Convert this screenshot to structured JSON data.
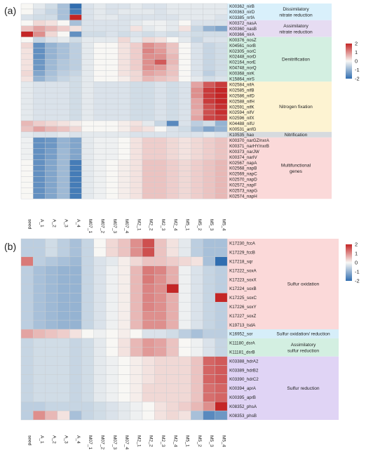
{
  "chart_data": [
    {
      "type": "heatmap",
      "panel_label": "(a)",
      "columns": [
        "seed",
        "A_1",
        "A_2",
        "A_3",
        "A_4",
        "M07_1",
        "M07_2",
        "M07_3",
        "M07_4",
        "M2_1",
        "M2_2",
        "M2_3",
        "M2_4",
        "M5_1",
        "M5_2",
        "M5_3",
        "M5_4"
      ],
      "rows": [
        "K00362_nirB",
        "K00363_nirD",
        "K03385_nrfA",
        "K00372_nasA",
        "K00360_nasB",
        "K00366_nirA",
        "K00376_nosZ",
        "K04561_norB",
        "K02305_norC",
        "K02448_norD",
        "K02164_norE",
        "K04748_norQ",
        "K00368_nirK",
        "K15864_nirS",
        "K02584_nifA",
        "K02585_nifB",
        "K02586_nifD",
        "K02588_nifH",
        "K02591_nifK",
        "K02594_nifV",
        "K02596_nifX",
        "K04488_nifU",
        "K00531_anfG",
        "K10535_hao",
        "K00370_narGZ/nxrA",
        "K00371_narHY/nxrB",
        "K00373_narJW",
        "K00374_narIV",
        "K02567_napA",
        "K02568_napB",
        "K02569_napC",
        "K02570_napD",
        "K02572_napF",
        "K02573_napG",
        "K02574_napH"
      ],
      "values": [
        [
          0.0,
          -0.2,
          -0.4,
          -0.8,
          -2.0,
          -0.3,
          -0.2,
          -0.3,
          -0.3,
          -0.2,
          -0.3,
          -0.3,
          -0.2,
          -0.2,
          -0.2,
          -0.2,
          -0.2
        ],
        [
          0.0,
          -0.3,
          -0.5,
          -0.8,
          -1.8,
          -0.3,
          -0.2,
          -0.3,
          -0.2,
          -0.2,
          -0.2,
          -0.3,
          -0.2,
          -0.2,
          -0.2,
          -0.2,
          -0.2
        ],
        [
          -0.3,
          -0.4,
          -0.4,
          -0.8,
          2.5,
          -0.3,
          -0.2,
          -0.2,
          -0.3,
          -0.3,
          -0.3,
          -0.3,
          -0.3,
          -0.2,
          -0.2,
          -0.2,
          -0.3
        ],
        [
          0.0,
          0.3,
          0.2,
          0.0,
          -0.8,
          -0.3,
          -0.3,
          -0.3,
          -0.3,
          -0.2,
          -0.1,
          -0.1,
          -0.2,
          0.0,
          -0.3,
          -0.3,
          -0.3
        ],
        [
          0.5,
          0.8,
          0.6,
          0.4,
          0.2,
          -0.3,
          -0.3,
          -0.3,
          -0.3,
          0.2,
          -0.2,
          -0.1,
          -0.2,
          0.2,
          -0.5,
          -1.0,
          -1.2
        ],
        [
          2.0,
          1.0,
          0.3,
          0.0,
          -1.5,
          -0.4,
          -0.4,
          -0.3,
          -0.4,
          -0.3,
          -0.4,
          -0.3,
          -0.4,
          -0.3,
          -0.4,
          -0.4,
          -0.4
        ],
        [
          0.0,
          -0.5,
          -0.3,
          -0.2,
          -0.4,
          -0.2,
          -0.2,
          -0.2,
          0.3,
          -0.2,
          0.3,
          0.2,
          0.0,
          -0.2,
          -0.5,
          -0.3,
          -0.3
        ],
        [
          0.3,
          -1.5,
          -1.0,
          -0.8,
          -0.6,
          -0.2,
          0.0,
          0.0,
          0.2,
          0.4,
          1.0,
          0.8,
          0.5,
          0.0,
          -0.3,
          -0.5,
          -0.4
        ],
        [
          0.2,
          -1.5,
          -1.0,
          -0.8,
          -0.6,
          -0.2,
          0.0,
          0.0,
          0.2,
          0.4,
          1.1,
          0.9,
          0.5,
          0.0,
          -0.3,
          -0.5,
          -0.4
        ],
        [
          0.2,
          -1.5,
          -1.0,
          -0.8,
          -0.6,
          -0.2,
          0.0,
          0.0,
          0.2,
          0.4,
          1.0,
          1.0,
          0.6,
          0.0,
          -0.3,
          -0.5,
          -0.4
        ],
        [
          0.2,
          -1.4,
          -0.9,
          -0.7,
          -0.6,
          -0.2,
          0.0,
          0.0,
          0.2,
          0.4,
          1.0,
          1.5,
          0.6,
          0.0,
          -0.3,
          -0.5,
          -0.4
        ],
        [
          0.2,
          -1.4,
          -0.9,
          -0.7,
          -0.6,
          -0.2,
          0.0,
          0.0,
          0.2,
          0.4,
          1.0,
          0.9,
          0.5,
          0.0,
          -0.3,
          -0.5,
          -0.4
        ],
        [
          0.3,
          -1.2,
          -0.8,
          -0.6,
          -0.5,
          -0.2,
          0.0,
          0.0,
          0.2,
          0.3,
          0.8,
          0.7,
          0.5,
          0.0,
          -0.3,
          -0.6,
          -0.4
        ],
        [
          0.2,
          -1.0,
          -0.7,
          -0.5,
          -0.4,
          -0.2,
          0.0,
          0.0,
          0.1,
          0.3,
          0.6,
          0.5,
          0.4,
          0.0,
          -0.2,
          -0.4,
          -0.3
        ],
        [
          -0.2,
          -0.3,
          -0.3,
          -0.3,
          -0.4,
          -0.2,
          -0.3,
          -0.3,
          -0.3,
          -0.4,
          -0.4,
          -0.3,
          -0.4,
          -0.3,
          0.8,
          1.5,
          1.8
        ],
        [
          -0.2,
          -0.3,
          -0.3,
          -0.3,
          -0.4,
          -0.2,
          -0.3,
          -0.3,
          -0.3,
          -0.4,
          -0.4,
          -0.3,
          -0.4,
          -0.3,
          1.0,
          1.8,
          2.0
        ],
        [
          -0.2,
          -0.3,
          -0.3,
          -0.3,
          -0.4,
          -0.2,
          -0.3,
          -0.3,
          -0.3,
          -0.4,
          -0.4,
          -0.3,
          -0.4,
          -0.3,
          1.0,
          1.8,
          2.0
        ],
        [
          -0.2,
          -0.3,
          -0.3,
          -0.3,
          -0.4,
          -0.2,
          -0.3,
          -0.3,
          -0.3,
          -0.4,
          -0.4,
          -0.3,
          -0.4,
          -0.3,
          0.8,
          1.8,
          2.0
        ],
        [
          -0.2,
          -0.3,
          -0.3,
          -0.3,
          -0.4,
          -0.2,
          -0.3,
          -0.3,
          -0.3,
          -0.4,
          -0.4,
          -0.3,
          -0.4,
          -0.3,
          0.8,
          1.6,
          1.9
        ],
        [
          -0.2,
          -0.3,
          -0.3,
          -0.3,
          -0.4,
          -0.2,
          -0.3,
          -0.3,
          -0.3,
          -0.4,
          -0.4,
          -0.3,
          -0.4,
          -0.3,
          0.7,
          1.6,
          1.9
        ],
        [
          -0.2,
          -0.3,
          -0.3,
          -0.3,
          -0.4,
          -0.2,
          -0.3,
          -0.3,
          -0.3,
          -0.4,
          -0.4,
          -0.3,
          -0.4,
          -0.3,
          0.8,
          1.7,
          1.8
        ],
        [
          0.6,
          0.4,
          0.3,
          0.2,
          0.1,
          0.0,
          0.0,
          0.0,
          0.1,
          0.2,
          -0.2,
          -0.5,
          -1.6,
          -0.3,
          -0.6,
          -0.4,
          -1.0
        ],
        [
          0.5,
          0.8,
          0.6,
          0.5,
          0.3,
          0.0,
          0.0,
          0.0,
          0.1,
          0.3,
          0.2,
          0.0,
          -0.3,
          -0.4,
          -0.8,
          -1.2,
          -1.0
        ],
        [
          -0.2,
          -0.3,
          -0.3,
          -0.2,
          -0.3,
          -0.2,
          -0.2,
          -0.2,
          -0.2,
          -0.3,
          -0.3,
          -0.3,
          -0.3,
          -0.3,
          -0.3,
          -0.2,
          -0.3
        ],
        [
          -0.1,
          -1.5,
          -1.4,
          -1.0,
          -1.2,
          -0.2,
          -0.1,
          -0.1,
          0.0,
          0.2,
          0.4,
          0.4,
          0.3,
          0.2,
          0.3,
          0.4,
          0.5
        ],
        [
          -0.1,
          -1.5,
          -1.4,
          -1.0,
          -1.2,
          -0.2,
          -0.1,
          -0.1,
          0.0,
          0.2,
          0.4,
          0.4,
          0.3,
          0.2,
          0.3,
          0.4,
          0.5
        ],
        [
          -0.1,
          -1.5,
          -1.3,
          -0.9,
          -1.2,
          -0.2,
          -0.1,
          -0.1,
          0.0,
          0.2,
          0.4,
          0.4,
          0.3,
          0.2,
          0.3,
          0.4,
          0.5
        ],
        [
          -0.1,
          -1.5,
          -1.3,
          -0.9,
          -1.2,
          -0.2,
          -0.1,
          -0.1,
          0.0,
          0.2,
          0.4,
          0.4,
          0.3,
          0.2,
          0.3,
          0.4,
          0.5
        ],
        [
          0.0,
          -1.5,
          -1.2,
          -0.9,
          -1.8,
          -0.2,
          -0.1,
          0.0,
          0.1,
          0.2,
          0.5,
          0.5,
          0.4,
          0.3,
          0.4,
          0.5,
          0.6
        ],
        [
          0.0,
          -1.5,
          -1.2,
          -0.9,
          -1.8,
          -0.2,
          -0.1,
          0.0,
          0.1,
          0.2,
          0.5,
          0.5,
          0.4,
          0.3,
          0.4,
          0.5,
          0.6
        ],
        [
          0.0,
          -1.5,
          -1.2,
          -0.9,
          -1.8,
          -0.2,
          -0.1,
          0.0,
          0.1,
          0.2,
          0.5,
          0.5,
          0.4,
          0.3,
          0.4,
          0.5,
          0.6
        ],
        [
          0.0,
          -1.5,
          -1.2,
          -0.9,
          -1.8,
          -0.2,
          -0.1,
          0.0,
          0.1,
          0.2,
          0.5,
          0.5,
          0.4,
          0.3,
          0.4,
          0.5,
          0.6
        ],
        [
          0.0,
          -1.5,
          -1.2,
          -0.9,
          -1.8,
          -0.2,
          -0.1,
          0.0,
          0.1,
          0.2,
          0.5,
          0.5,
          0.4,
          0.3,
          0.4,
          0.5,
          0.6
        ],
        [
          0.0,
          -1.5,
          -1.2,
          -0.9,
          -1.8,
          -0.2,
          -0.1,
          0.0,
          0.1,
          0.2,
          0.5,
          0.5,
          0.4,
          0.3,
          0.4,
          0.5,
          0.6
        ],
        [
          0.0,
          -1.5,
          -1.2,
          -0.9,
          -1.8,
          -0.2,
          -0.1,
          0.0,
          0.1,
          0.2,
          0.5,
          0.5,
          0.4,
          0.3,
          0.4,
          0.5,
          0.6
        ]
      ],
      "categories": [
        {
          "label": "Dissimilatory\nnitrate reduction",
          "row_start": 0,
          "row_end": 2,
          "color": "#d9f0fb"
        },
        {
          "label": "Assimilatory\nnitrate reduction",
          "row_start": 3,
          "row_end": 5,
          "color": "#e6dcf2"
        },
        {
          "label": "Denitrification",
          "row_start": 6,
          "row_end": 13,
          "color": "#d3efe1"
        },
        {
          "label": "Nitrogen fixation",
          "row_start": 14,
          "row_end": 22,
          "color": "#fdf3d2"
        },
        {
          "label": "Nitrification",
          "row_start": 23,
          "row_end": 23,
          "color": "#d6dade"
        },
        {
          "label": "Multifunctional\ngenes",
          "row_start": 24,
          "row_end": 34,
          "color": "#fbd9d9"
        }
      ],
      "scale": {
        "min": -2,
        "max": 2,
        "ticks": [
          "2",
          "1",
          "0",
          "-1",
          "-2"
        ]
      }
    },
    {
      "type": "heatmap",
      "panel_label": "(b)",
      "columns": [
        "seed",
        "A_1",
        "A_2",
        "A_3",
        "A_4",
        "M07_1",
        "M07_2",
        "M07_3",
        "M07_4",
        "M2_1",
        "M2_2",
        "M2_3",
        "M2_4",
        "M5_1",
        "M5_2",
        "M5_3",
        "M5_4"
      ],
      "rows": [
        "K17230_fccA",
        "K17229_fccB",
        "K17218_sqr",
        "K17222_soxA",
        "K17223_soxX",
        "K17224_soxB",
        "K17225_soxC",
        "K17226_soxY",
        "K17227_soxZ",
        "K19713_tsdA",
        "K16952_sor",
        "K11180_dsrA",
        "K11181_dsrB",
        "K03388_hdrA2",
        "K03389_hdrB2",
        "K03390_hdrC2",
        "K00394_aprA",
        "K00395_aprB",
        "K08352_phsA",
        "K08353_phsB"
      ],
      "values": [
        [
          -0.6,
          -0.6,
          -0.4,
          -0.6,
          -0.8,
          -0.5,
          0.0,
          0.3,
          0.5,
          1.0,
          1.6,
          0.5,
          0.2,
          -0.2,
          -0.6,
          -0.8,
          -0.8
        ],
        [
          -0.6,
          -0.6,
          -0.4,
          -0.6,
          -0.8,
          -0.5,
          0.0,
          0.3,
          0.5,
          1.0,
          1.6,
          0.5,
          0.2,
          -0.2,
          -0.6,
          -0.8,
          -0.8
        ],
        [
          1.2,
          -0.6,
          -0.7,
          -0.8,
          -0.9,
          -0.5,
          -0.3,
          -0.2,
          0.1,
          0.3,
          0.5,
          0.5,
          0.4,
          0.3,
          0.2,
          -0.8,
          -2.0
        ],
        [
          -0.6,
          -0.8,
          -0.9,
          -1.0,
          -1.0,
          -0.5,
          -0.3,
          -0.1,
          0.1,
          0.6,
          1.2,
          1.1,
          0.7,
          -0.1,
          -0.3,
          -0.5,
          -0.6
        ],
        [
          -0.6,
          -0.8,
          -0.9,
          -1.0,
          -1.0,
          -0.5,
          -0.3,
          -0.1,
          0.1,
          0.6,
          1.2,
          1.0,
          0.7,
          -0.1,
          -0.3,
          -0.5,
          -0.6
        ],
        [
          -0.6,
          -0.8,
          -0.9,
          -1.0,
          -1.0,
          -0.5,
          -0.3,
          -0.1,
          0.1,
          0.6,
          1.1,
          1.0,
          2.2,
          -0.1,
          -0.3,
          -0.5,
          -0.6
        ],
        [
          -0.6,
          -0.8,
          -0.9,
          -1.0,
          -1.0,
          -0.5,
          -0.3,
          -0.1,
          0.1,
          0.6,
          1.1,
          1.0,
          0.7,
          -0.1,
          -0.3,
          -0.5,
          2.2
        ],
        [
          -0.6,
          -0.8,
          -0.9,
          -1.0,
          -1.0,
          -0.5,
          -0.3,
          -0.1,
          0.1,
          0.6,
          1.1,
          1.0,
          0.7,
          -0.1,
          -0.3,
          -0.5,
          -0.6
        ],
        [
          -0.6,
          -0.8,
          -0.9,
          -1.0,
          -1.0,
          -0.5,
          -0.3,
          -0.1,
          0.1,
          0.6,
          1.0,
          1.0,
          0.7,
          -0.1,
          -0.3,
          -0.5,
          -0.6
        ],
        [
          -0.6,
          -0.8,
          -0.9,
          -1.0,
          -1.0,
          -0.5,
          -0.3,
          -0.1,
          0.1,
          0.6,
          1.0,
          1.0,
          0.7,
          -0.1,
          -0.3,
          -0.5,
          -0.6
        ],
        [
          0.8,
          0.6,
          0.5,
          0.4,
          0.2,
          0.0,
          -0.1,
          0.0,
          0.1,
          0.0,
          -0.3,
          -0.3,
          -0.4,
          -0.6,
          -0.8,
          -0.6,
          -0.6
        ],
        [
          -0.5,
          -0.4,
          -0.4,
          -0.4,
          -0.5,
          -0.4,
          -0.2,
          0.0,
          0.2,
          0.6,
          0.9,
          0.8,
          0.5,
          0.0,
          -0.1,
          -0.3,
          -0.5
        ],
        [
          -0.5,
          -0.4,
          -0.4,
          -0.4,
          -0.5,
          -0.4,
          -0.2,
          0.0,
          0.2,
          0.6,
          0.9,
          0.8,
          0.5,
          0.0,
          -0.1,
          -0.3,
          -0.5
        ],
        [
          -0.5,
          -0.4,
          -0.4,
          -0.4,
          -0.5,
          -0.4,
          -0.2,
          -0.1,
          0.0,
          0.1,
          0.2,
          0.3,
          0.3,
          0.3,
          0.5,
          1.4,
          1.5
        ],
        [
          -0.5,
          -0.4,
          -0.4,
          -0.4,
          -0.5,
          -0.4,
          -0.2,
          -0.1,
          0.0,
          0.1,
          0.2,
          0.3,
          0.3,
          0.3,
          0.5,
          1.4,
          1.5
        ],
        [
          -0.5,
          -0.4,
          -0.4,
          -0.4,
          -0.5,
          -0.4,
          -0.2,
          -0.1,
          0.0,
          0.1,
          0.2,
          0.3,
          0.3,
          0.3,
          0.5,
          1.4,
          1.5
        ],
        [
          -0.5,
          -0.4,
          -0.4,
          -0.4,
          -0.5,
          -0.4,
          -0.2,
          -0.1,
          0.0,
          0.1,
          0.3,
          0.3,
          0.3,
          0.3,
          0.5,
          1.3,
          1.4
        ],
        [
          -0.5,
          -0.4,
          -0.4,
          -0.4,
          -0.5,
          -0.4,
          -0.2,
          -0.1,
          0.0,
          0.1,
          0.3,
          0.3,
          0.3,
          0.3,
          0.5,
          1.3,
          1.4
        ],
        [
          -0.6,
          -0.6,
          -0.5,
          -0.5,
          -0.5,
          -0.5,
          -0.4,
          -0.3,
          -0.2,
          -0.1,
          0.0,
          0.2,
          0.3,
          0.4,
          0.6,
          1.0,
          2.3
        ],
        [
          -0.6,
          1.0,
          0.6,
          0.2,
          -0.8,
          -0.5,
          -0.4,
          -0.3,
          -0.2,
          -0.1,
          0.0,
          0.2,
          0.3,
          0.2,
          -0.8,
          -1.6,
          -1.4
        ]
      ],
      "categories": [
        {
          "label": "Sulfur oxidation",
          "row_start": 0,
          "row_end": 9,
          "color": "#fbd9d9"
        },
        {
          "label": "Sulfur oxidation/ reduction",
          "row_start": 10,
          "row_end": 10,
          "color": "#d6eef9"
        },
        {
          "label": "Assimilatory\nsulfur reduction",
          "row_start": 11,
          "row_end": 12,
          "color": "#d3efe1"
        },
        {
          "label": "Sulfur reduction",
          "row_start": 13,
          "row_end": 19,
          "color": "#e0d4f5"
        }
      ],
      "scale": {
        "min": -2,
        "max": 2,
        "ticks": [
          "2",
          "1",
          "0",
          "-1",
          "-2"
        ]
      }
    }
  ]
}
